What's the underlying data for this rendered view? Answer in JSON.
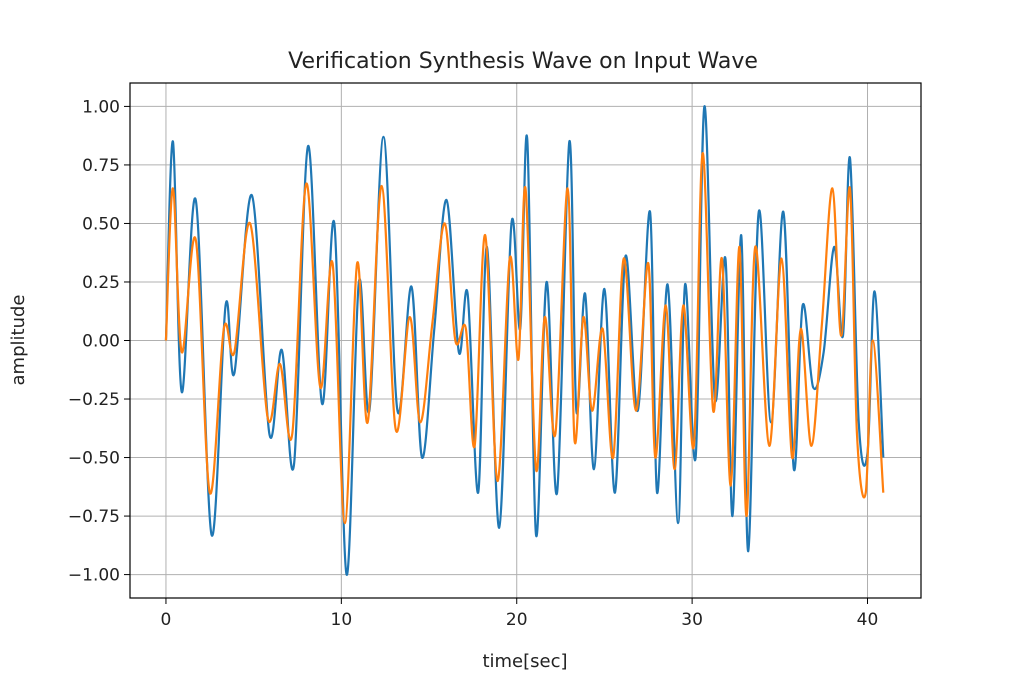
{
  "chart_data": {
    "type": "line",
    "title": "Verification Synthesis Wave on Input Wave",
    "xlabel": "time[sec]",
    "ylabel": "amplitude",
    "xlim": [
      -2.05,
      43.05
    ],
    "ylim": [
      -1.1,
      1.1
    ],
    "xticks": [
      0,
      10,
      20,
      30,
      40
    ],
    "yticks": [
      1.0,
      0.75,
      0.5,
      0.25,
      0.0,
      -0.25,
      -0.5,
      -0.75,
      -1.0
    ],
    "ytick_labels": [
      "1.00",
      "0.75",
      "0.50",
      "0.25",
      "0.00",
      "−0.25",
      "−0.50",
      "−0.75",
      "−1.00"
    ],
    "grid": true,
    "legend": "none",
    "series": [
      {
        "color": "#1f77b4",
        "x": [
          0,
          0.4,
          0.9,
          1.7,
          2.6,
          3.4,
          3.9,
          4.9,
          5.9,
          6.6,
          7.3,
          8.1,
          8.9,
          9.6,
          10.3,
          11.0,
          11.6,
          12.4,
          13.2,
          14.0,
          14.6,
          15.3,
          16.0,
          16.7,
          17.2,
          17.8,
          18.3,
          19.0,
          19.7,
          20.2,
          20.6,
          21.1,
          21.7,
          22.3,
          23.0,
          23.4,
          23.9,
          24.4,
          25.0,
          25.6,
          26.2,
          26.9,
          27.6,
          28.0,
          28.6,
          29.2,
          29.6,
          30.2,
          30.7,
          31.3,
          31.9,
          32.3,
          32.8,
          33.2,
          33.8,
          34.5,
          35.2,
          35.8,
          36.3,
          36.9,
          37.5,
          38.1,
          38.6,
          39.0,
          39.5,
          40.0,
          40.4,
          40.9
        ],
        "y": [
          0,
          0.85,
          -0.22,
          0.6,
          -0.83,
          0.15,
          -0.14,
          0.62,
          -0.4,
          -0.04,
          -0.53,
          0.83,
          -0.27,
          0.5,
          -1.0,
          0.25,
          -0.3,
          0.87,
          -0.3,
          0.23,
          -0.5,
          0.05,
          0.6,
          -0.05,
          0.2,
          -0.65,
          0.4,
          -0.8,
          0.5,
          0.05,
          0.86,
          -0.83,
          0.25,
          -0.65,
          0.85,
          -0.3,
          0.2,
          -0.55,
          0.22,
          -0.65,
          0.36,
          -0.3,
          0.55,
          -0.65,
          0.24,
          -0.78,
          0.24,
          -0.5,
          1.0,
          -0.25,
          0.35,
          -0.75,
          0.45,
          -0.9,
          0.55,
          -0.35,
          0.55,
          -0.55,
          0.15,
          -0.2,
          -0.05,
          0.4,
          0.02,
          0.78,
          -0.35,
          -0.48,
          0.21,
          -0.5
        ]
      },
      {
        "color": "#ff7f0e",
        "x": [
          0,
          0.4,
          0.9,
          1.7,
          2.5,
          3.3,
          3.9,
          4.8,
          5.8,
          6.5,
          7.2,
          8.0,
          8.8,
          9.5,
          10.2,
          10.9,
          11.5,
          12.3,
          13.1,
          13.9,
          14.5,
          15.2,
          15.9,
          16.5,
          17.1,
          17.6,
          18.2,
          18.9,
          19.6,
          20.1,
          20.5,
          21.1,
          21.6,
          22.2,
          22.9,
          23.3,
          23.8,
          24.3,
          24.9,
          25.5,
          26.1,
          26.8,
          27.5,
          27.9,
          28.5,
          29.0,
          29.5,
          30.1,
          30.6,
          31.2,
          31.7,
          32.2,
          32.7,
          33.1,
          33.6,
          34.4,
          35.1,
          35.7,
          36.2,
          36.8,
          37.4,
          38.0,
          38.5,
          39.0,
          39.4,
          39.9,
          40.3,
          40.9
        ],
        "y": [
          0,
          0.65,
          -0.05,
          0.43,
          -0.65,
          0.05,
          -0.05,
          0.5,
          -0.33,
          -0.1,
          -0.4,
          0.67,
          -0.2,
          0.33,
          -0.78,
          0.33,
          -0.35,
          0.66,
          -0.38,
          0.1,
          -0.35,
          0.08,
          0.5,
          0.0,
          0.05,
          -0.45,
          0.45,
          -0.6,
          0.35,
          -0.08,
          0.65,
          -0.55,
          0.1,
          -0.4,
          0.65,
          -0.43,
          0.1,
          -0.3,
          0.05,
          -0.5,
          0.35,
          -0.3,
          0.33,
          -0.5,
          0.15,
          -0.55,
          0.15,
          -0.45,
          0.8,
          -0.3,
          0.35,
          -0.62,
          0.4,
          -0.75,
          0.4,
          -0.45,
          0.35,
          -0.5,
          0.05,
          -0.45,
          0.07,
          0.65,
          0.02,
          0.65,
          -0.4,
          -0.65,
          0.0,
          -0.65
        ]
      }
    ]
  }
}
